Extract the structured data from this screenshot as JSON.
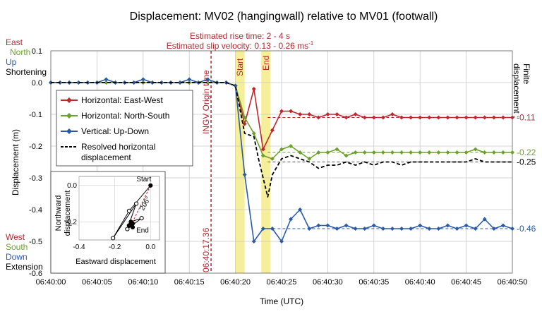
{
  "chart_data": {
    "type": "line",
    "title": "Displacement: MV02 (hangingwall) relative to MV01 (footwall)",
    "xlabel": "Time (UTC)",
    "ylabel": "Displacement (m)",
    "xlim": [
      "06:40:00",
      "06:40:50"
    ],
    "ylim": [
      -0.6,
      0.1
    ],
    "grid": true,
    "x_ticks": [
      "06:40:00",
      "06:40:05",
      "06:40:10",
      "06:40:15",
      "06:40:20",
      "06:40:25",
      "06:40:30",
      "06:40:35",
      "06:40:40",
      "06:40:45",
      "06:40:50"
    ],
    "y_ticks": [
      "0.1",
      "0.0",
      "-0.1",
      "-0.2",
      "-0.3",
      "-0.4",
      "-0.5",
      "-0.6"
    ],
    "annotations": {
      "rise_time": "Estimated rise time: 2 - 4 s",
      "slip_velocity": "Estimated slip velocity: 0.13 - 0.26 ms",
      "slip_velocity_sup": "-1",
      "origin_label": "INGV Origin time",
      "origin_time": "06:40:17.36",
      "start_label": "Start",
      "end_label": "End",
      "finite_label_1": "Finite",
      "finite_label_2": "displacement :"
    },
    "left_labels": {
      "east": "East",
      "north": "North",
      "up": "Up",
      "shortening": "Shortening",
      "west": "West",
      "south": "South",
      "down": "Down",
      "extension": "Extension"
    },
    "shaded_windows": [
      [
        20.0,
        21.0
      ],
      [
        22.8,
        23.8
      ]
    ],
    "origin_x": 17.36,
    "series": [
      {
        "name": "Horizontal: East-West",
        "color": "#c0272d",
        "marker": "diamond",
        "final": -0.11,
        "final_label": "-0.11",
        "x": [
          0,
          1,
          2,
          3,
          4,
          5,
          6,
          7,
          8,
          9,
          10,
          11,
          12,
          13,
          14,
          15,
          16,
          17,
          18,
          19,
          20,
          21,
          22,
          23,
          24,
          25,
          26,
          27,
          28,
          29,
          30,
          31,
          32,
          33,
          34,
          35,
          36,
          37,
          38,
          39,
          40,
          41,
          42,
          43,
          44,
          45,
          46,
          47,
          48,
          49,
          50
        ],
        "y": [
          0.0,
          0.0,
          0.0,
          0.0,
          0.0,
          0.0,
          0.0,
          0.0,
          0.0,
          0.0,
          0.0,
          0.0,
          0.0,
          0.0,
          0.0,
          0.0,
          0.0,
          0.0,
          0.0,
          0.0,
          -0.01,
          -0.13,
          -0.02,
          -0.21,
          -0.15,
          -0.09,
          -0.09,
          -0.1,
          -0.1,
          -0.11,
          -0.1,
          -0.1,
          -0.11,
          -0.1,
          -0.11,
          -0.11,
          -0.11,
          -0.1,
          -0.11,
          -0.11,
          -0.11,
          -0.11,
          -0.11,
          -0.11,
          -0.11,
          -0.11,
          -0.11,
          -0.11,
          -0.11,
          -0.11,
          -0.11
        ]
      },
      {
        "name": "Horizontal: North-South",
        "color": "#6aa12c",
        "marker": "diamond",
        "final": -0.22,
        "final_label": "-0.22",
        "x": [
          0,
          1,
          2,
          3,
          4,
          5,
          6,
          7,
          8,
          9,
          10,
          11,
          12,
          13,
          14,
          15,
          16,
          17,
          18,
          19,
          20,
          21,
          22,
          23,
          24,
          25,
          26,
          27,
          28,
          29,
          30,
          31,
          32,
          33,
          34,
          35,
          36,
          37,
          38,
          39,
          40,
          41,
          42,
          43,
          44,
          45,
          46,
          47,
          48,
          49,
          50
        ],
        "y": [
          0.0,
          0.0,
          0.0,
          0.0,
          0.0,
          0.0,
          0.0,
          0.0,
          0.0,
          0.0,
          0.0,
          0.0,
          0.0,
          0.0,
          0.0,
          0.0,
          0.0,
          0.0,
          0.0,
          0.0,
          -0.01,
          -0.11,
          -0.16,
          -0.23,
          -0.24,
          -0.21,
          -0.2,
          -0.22,
          -0.24,
          -0.22,
          -0.22,
          -0.21,
          -0.23,
          -0.22,
          -0.22,
          -0.22,
          -0.22,
          -0.22,
          -0.22,
          -0.22,
          -0.22,
          -0.22,
          -0.22,
          -0.22,
          -0.22,
          -0.22,
          -0.21,
          -0.22,
          -0.22,
          -0.22,
          -0.22
        ]
      },
      {
        "name": "Vertical: Up-Down",
        "color": "#2a5aa6",
        "marker": "diamond",
        "final": -0.46,
        "final_label": "-0.46",
        "x": [
          0,
          1,
          2,
          3,
          4,
          5,
          6,
          7,
          8,
          9,
          10,
          11,
          12,
          13,
          14,
          15,
          16,
          17,
          18,
          19,
          20,
          21,
          22,
          23,
          24,
          25,
          26,
          27,
          28,
          29,
          30,
          31,
          32,
          33,
          34,
          35,
          36,
          37,
          38,
          39,
          40,
          41,
          42,
          43,
          44,
          45,
          46,
          47,
          48,
          49,
          50
        ],
        "y": [
          0.0,
          0.0,
          0.0,
          0.0,
          0.0,
          0.0,
          0.01,
          0.0,
          0.0,
          0.0,
          0.01,
          0.0,
          0.0,
          0.0,
          0.0,
          0.01,
          0.0,
          0.01,
          0.0,
          0.0,
          -0.01,
          -0.29,
          -0.5,
          -0.46,
          -0.46,
          -0.5,
          -0.43,
          -0.4,
          -0.46,
          -0.45,
          -0.45,
          -0.46,
          -0.45,
          -0.46,
          -0.46,
          -0.45,
          -0.46,
          -0.46,
          -0.46,
          -0.46,
          -0.45,
          -0.46,
          -0.46,
          -0.45,
          -0.46,
          -0.45,
          -0.46,
          -0.43,
          -0.46,
          -0.45,
          -0.46
        ]
      },
      {
        "name": "Resolved horizontal",
        "name_line2": "displacement",
        "color": "#000000",
        "dashed": true,
        "final": -0.25,
        "final_label": "-0.25",
        "x": [
          0,
          5,
          10,
          15,
          19,
          20,
          21,
          22,
          22.5,
          23,
          23.5,
          24,
          25,
          26,
          27,
          28,
          29,
          30,
          31,
          32,
          33,
          34,
          35,
          36,
          37,
          38,
          39,
          40,
          41,
          42,
          43,
          44,
          45,
          46,
          47,
          48,
          49,
          50
        ],
        "y": [
          0.0,
          0.0,
          0.0,
          0.0,
          0.0,
          -0.01,
          -0.16,
          -0.17,
          -0.24,
          -0.3,
          -0.36,
          -0.29,
          -0.24,
          -0.23,
          -0.24,
          -0.25,
          -0.27,
          -0.26,
          -0.26,
          -0.25,
          -0.26,
          -0.25,
          -0.26,
          -0.25,
          -0.25,
          -0.26,
          -0.25,
          -0.25,
          -0.25,
          -0.25,
          -0.25,
          -0.25,
          -0.25,
          -0.24,
          -0.25,
          -0.25,
          -0.25,
          -0.25
        ]
      }
    ],
    "inset": {
      "type": "scatter",
      "xlabel": "Eastward displacement",
      "ylabel_1": "Northward",
      "ylabel_2": "displacement",
      "xlim": [
        -0.4,
        0.05
      ],
      "ylim": [
        -0.3,
        0.05
      ],
      "x_ticks": [
        "-0.4",
        "-0.2",
        "0.0"
      ],
      "y_ticks": [
        "0.0",
        "-0.2"
      ],
      "start_label": "Start",
      "end_label": "End",
      "angle_label": "206°",
      "x": [
        0.0,
        -0.12,
        -0.21,
        -0.08,
        -0.13,
        -0.05,
        -0.11,
        -0.12,
        -0.1,
        -0.11,
        -0.12,
        -0.11,
        -0.1,
        -0.11
      ],
      "y": [
        0.0,
        -0.14,
        -0.29,
        -0.1,
        -0.24,
        -0.18,
        -0.2,
        -0.22,
        -0.23,
        -0.21,
        -0.22,
        -0.22,
        -0.21,
        -0.22
      ]
    }
  }
}
